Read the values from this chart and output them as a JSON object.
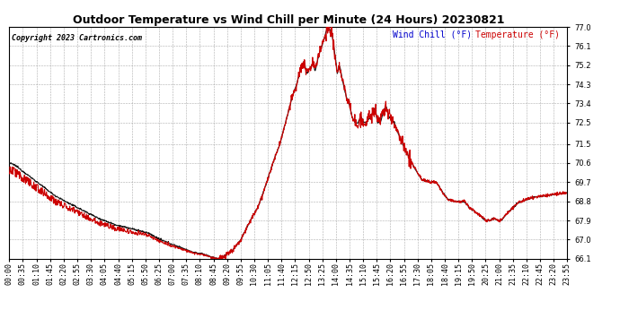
{
  "title": "Outdoor Temperature vs Wind Chill per Minute (24 Hours) 20230821",
  "copyright": "Copyright 2023 Cartronics.com",
  "legend_wind_chill": "Wind Chill (°F)",
  "legend_temperature": "Temperature (°F)",
  "wind_chill_color": "#cc0000",
  "temperature_color": "#111111",
  "background_color": "#ffffff",
  "grid_color": "#999999",
  "ylim_min": 66.1,
  "ylim_max": 77.0,
  "yticks": [
    66.1,
    67.0,
    67.9,
    68.8,
    69.7,
    70.6,
    71.5,
    72.5,
    73.4,
    74.3,
    75.2,
    76.1,
    77.0
  ],
  "xtick_labels": [
    "00:00",
    "00:35",
    "01:10",
    "01:45",
    "02:20",
    "02:55",
    "03:30",
    "04:05",
    "04:40",
    "05:15",
    "05:50",
    "06:25",
    "07:00",
    "07:35",
    "08:10",
    "08:45",
    "09:20",
    "09:55",
    "10:30",
    "11:05",
    "11:40",
    "12:15",
    "12:50",
    "13:25",
    "14:00",
    "14:35",
    "15:10",
    "15:45",
    "16:20",
    "16:55",
    "17:30",
    "18:05",
    "18:40",
    "19:15",
    "19:50",
    "20:25",
    "21:00",
    "21:35",
    "22:10",
    "22:45",
    "23:20",
    "23:55"
  ],
  "title_fontsize": 9,
  "copyright_fontsize": 6,
  "legend_fontsize": 7,
  "tick_fontsize": 6
}
